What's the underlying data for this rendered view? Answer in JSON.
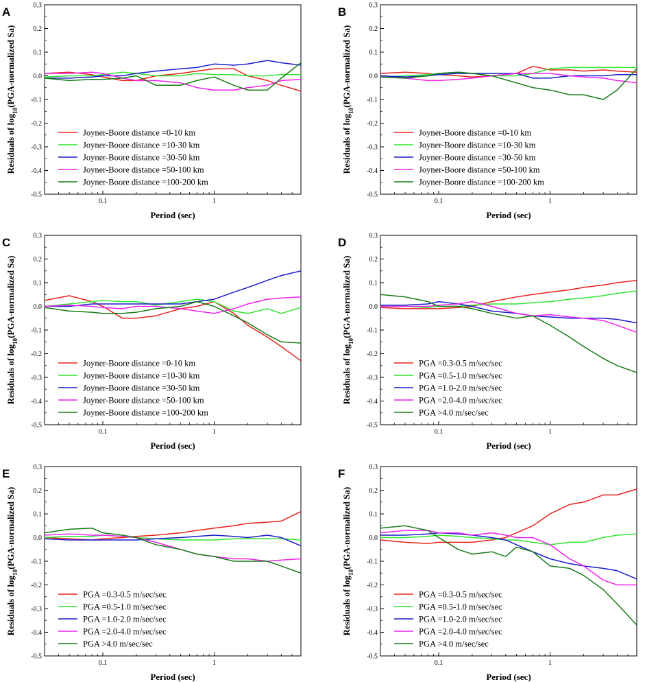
{
  "figure": {
    "shared": {
      "xlabel": "Period (sec)",
      "ylabel_prefix": "Residuals of log",
      "ylabel_sub": "10",
      "ylabel_suffix": "(PGA-normalized Sa)",
      "yticks": [
        "0.3",
        "0.2",
        "0.1",
        "0.0",
        "-0.1",
        "-0.2",
        "-0.3",
        "-0.4",
        "-0.5"
      ],
      "xticks": [
        "0.1",
        "1"
      ]
    }
  },
  "colors": {
    "red": "#e8201a",
    "light_green": "#2ee62e",
    "blue": "#1a1acc",
    "magenta": "#ee22ee",
    "dark_green": "#157a15"
  },
  "chart_data": [
    {
      "panel": "A",
      "type": "line",
      "xscale": "log",
      "xlim": [
        0.03,
        6
      ],
      "ylim": [
        -0.5,
        0.3
      ],
      "xlabel": "Period (sec)",
      "ylabel": "Residuals of log10(PGA-normalized Sa)",
      "legend_position": "bottom-left",
      "x": [
        0.03,
        0.05,
        0.08,
        0.1,
        0.15,
        0.2,
        0.3,
        0.5,
        0.7,
        1,
        1.5,
        2,
        3,
        4,
        6
      ],
      "series": [
        {
          "name": "Joyner-Boore distance =0-10 km",
          "color": "red",
          "values": [
            0.01,
            0.015,
            0.005,
            -0.005,
            -0.02,
            -0.02,
            0.0,
            0.01,
            0.02,
            0.03,
            0.03,
            0.0,
            -0.02,
            -0.04,
            -0.065
          ]
        },
        {
          "name": "Joyner-Boore distance =10-30 km",
          "color": "light_green",
          "values": [
            -0.005,
            0.0,
            0.0,
            0.005,
            0.015,
            0.01,
            0.0,
            0.0,
            0.01,
            0.005,
            0.005,
            0.0,
            0.0,
            0.005,
            0.005
          ]
        },
        {
          "name": "Joyner-Boore distance =30-50 km",
          "color": "blue",
          "values": [
            -0.01,
            -0.01,
            -0.005,
            0.0,
            0.0,
            0.01,
            0.02,
            0.03,
            0.035,
            0.05,
            0.045,
            0.05,
            0.065,
            0.055,
            0.045
          ]
        },
        {
          "name": "Joyner-Boore distance =50-100 km",
          "color": "magenta",
          "values": [
            0.01,
            0.01,
            0.015,
            0.01,
            -0.01,
            -0.02,
            -0.02,
            -0.03,
            -0.05,
            -0.06,
            -0.06,
            -0.05,
            -0.04,
            -0.02,
            -0.015
          ]
        },
        {
          "name": "Joyner-Boore distance =100-200 km",
          "color": "dark_green",
          "values": [
            -0.01,
            -0.02,
            -0.015,
            -0.015,
            -0.01,
            0.0,
            -0.04,
            -0.04,
            -0.02,
            -0.005,
            -0.04,
            -0.06,
            -0.06,
            -0.01,
            0.055
          ]
        }
      ]
    },
    {
      "panel": "B",
      "type": "line",
      "xscale": "log",
      "xlim": [
        0.03,
        6
      ],
      "ylim": [
        -0.5,
        0.3
      ],
      "xlabel": "Period (sec)",
      "ylabel": "Residuals of log10(PGA-normalized Sa)",
      "legend_position": "bottom-left",
      "x": [
        0.03,
        0.05,
        0.08,
        0.1,
        0.15,
        0.2,
        0.3,
        0.5,
        0.7,
        1,
        1.5,
        2,
        3,
        4,
        6
      ],
      "series": [
        {
          "name": "Joyner-Boore distance =0-10 km",
          "color": "red",
          "values": [
            0.01,
            0.015,
            0.01,
            0.005,
            0.0,
            -0.005,
            0.0,
            0.01,
            0.04,
            0.025,
            0.025,
            0.02,
            0.025,
            0.02,
            0.015
          ]
        },
        {
          "name": "Joyner-Boore distance =10-30 km",
          "color": "light_green",
          "values": [
            -0.005,
            0.0,
            0.005,
            0.01,
            0.015,
            0.01,
            0.0,
            0.0,
            0.01,
            0.03,
            0.035,
            0.035,
            0.035,
            0.035,
            0.035
          ]
        },
        {
          "name": "Joyner-Boore distance =30-50 km",
          "color": "blue",
          "values": [
            0.0,
            -0.005,
            0.0,
            0.005,
            0.01,
            0.01,
            0.01,
            0.01,
            -0.01,
            -0.01,
            0.0,
            0.0,
            0.0,
            0.005,
            0.005
          ]
        },
        {
          "name": "Joyner-Boore distance =50-100 km",
          "color": "magenta",
          "values": [
            -0.005,
            -0.01,
            -0.02,
            -0.02,
            -0.015,
            -0.01,
            0.0,
            0.01,
            0.01,
            0.01,
            0.0,
            -0.005,
            -0.01,
            -0.02,
            -0.03
          ]
        },
        {
          "name": "Joyner-Boore distance =100-200 km",
          "color": "dark_green",
          "values": [
            -0.005,
            -0.01,
            0.0,
            0.01,
            0.015,
            0.01,
            0.0,
            -0.03,
            -0.05,
            -0.06,
            -0.08,
            -0.08,
            -0.1,
            -0.06,
            0.03
          ]
        }
      ]
    },
    {
      "panel": "C",
      "type": "line",
      "xscale": "log",
      "xlim": [
        0.03,
        6
      ],
      "ylim": [
        -0.5,
        0.3
      ],
      "xlabel": "Period (sec)",
      "ylabel": "Residuals of log10(PGA-normalized Sa)",
      "legend_position": "bottom-left",
      "x": [
        0.03,
        0.05,
        0.08,
        0.1,
        0.15,
        0.2,
        0.3,
        0.5,
        0.7,
        1,
        1.5,
        2,
        3,
        4,
        6
      ],
      "series": [
        {
          "name": "Joyner-Boore distance =0-10 km",
          "color": "red",
          "values": [
            0.025,
            0.045,
            0.02,
            0.0,
            -0.05,
            -0.05,
            -0.04,
            -0.01,
            0.0,
            0.02,
            -0.03,
            -0.08,
            -0.13,
            -0.17,
            -0.23
          ]
        },
        {
          "name": "Joyner-Boore distance =10-30 km",
          "color": "light_green",
          "values": [
            0.0,
            0.01,
            0.02,
            0.025,
            0.02,
            0.02,
            0.005,
            0.02,
            0.03,
            0.02,
            -0.02,
            -0.03,
            -0.01,
            -0.03,
            -0.005
          ]
        },
        {
          "name": "Joyner-Boore distance =30-50 km",
          "color": "blue",
          "values": [
            0.0,
            0.0,
            0.01,
            0.01,
            0.01,
            0.01,
            0.01,
            0.01,
            0.02,
            0.03,
            0.06,
            0.08,
            0.11,
            0.13,
            0.15
          ]
        },
        {
          "name": "Joyner-Boore distance =50-100 km",
          "color": "magenta",
          "values": [
            0.0,
            0.005,
            0.0,
            -0.005,
            -0.01,
            0.0,
            0.0,
            -0.01,
            -0.02,
            -0.03,
            -0.01,
            0.01,
            0.03,
            0.035,
            0.04
          ]
        },
        {
          "name": "Joyner-Boore distance =100-200 km",
          "color": "dark_green",
          "values": [
            -0.005,
            -0.02,
            -0.025,
            -0.03,
            -0.03,
            -0.025,
            -0.01,
            0.0,
            0.02,
            0.0,
            -0.04,
            -0.07,
            -0.12,
            -0.15,
            -0.155
          ]
        }
      ]
    },
    {
      "panel": "D",
      "type": "line",
      "xscale": "log",
      "xlim": [
        0.03,
        6
      ],
      "ylim": [
        -0.5,
        0.3
      ],
      "xlabel": "Period (sec)",
      "ylabel": "Residuals of log10(PGA-normalized Sa)",
      "legend_position": "bottom-left",
      "x": [
        0.03,
        0.05,
        0.08,
        0.1,
        0.15,
        0.2,
        0.3,
        0.5,
        0.7,
        1,
        1.5,
        2,
        3,
        4,
        6
      ],
      "series": [
        {
          "name": "PGA =0.3-0.5 m/sec/sec",
          "color": "red",
          "values": [
            -0.005,
            -0.01,
            -0.01,
            -0.01,
            -0.005,
            0.0,
            0.02,
            0.04,
            0.05,
            0.06,
            0.07,
            0.08,
            0.09,
            0.1,
            0.11
          ]
        },
        {
          "name": "PGA =0.5-1.0 m/sec/sec",
          "color": "light_green",
          "values": [
            0.0,
            0.0,
            -0.005,
            0.0,
            0.0,
            0.005,
            0.01,
            0.01,
            0.015,
            0.02,
            0.03,
            0.035,
            0.045,
            0.055,
            0.065
          ]
        },
        {
          "name": "PGA =1.0-2.0 m/sec/sec",
          "color": "blue",
          "values": [
            0.005,
            0.005,
            0.01,
            0.02,
            0.01,
            0.0,
            -0.02,
            -0.03,
            -0.04,
            -0.045,
            -0.05,
            -0.05,
            -0.05,
            -0.055,
            -0.07
          ]
        },
        {
          "name": "PGA =2.0-4.0 m/sec/sec",
          "color": "magenta",
          "values": [
            0.0,
            0.0,
            0.0,
            0.005,
            0.01,
            0.02,
            0.0,
            -0.03,
            -0.04,
            -0.035,
            -0.045,
            -0.05,
            -0.06,
            -0.08,
            -0.11
          ]
        },
        {
          "name": "PGA >4.0 m/sec/sec",
          "color": "dark_green",
          "values": [
            0.05,
            0.04,
            0.02,
            0.0,
            0.0,
            -0.01,
            -0.03,
            -0.05,
            -0.04,
            -0.08,
            -0.13,
            -0.17,
            -0.22,
            -0.25,
            -0.28
          ]
        }
      ]
    },
    {
      "panel": "E",
      "type": "line",
      "xscale": "log",
      "xlim": [
        0.03,
        6
      ],
      "ylim": [
        -0.5,
        0.3
      ],
      "xlabel": "Period (sec)",
      "ylabel": "Residuals of log10(PGA-normalized Sa)",
      "legend_position": "bottom-left",
      "x": [
        0.03,
        0.05,
        0.08,
        0.1,
        0.15,
        0.2,
        0.3,
        0.5,
        0.7,
        1,
        1.5,
        2,
        3,
        4,
        6
      ],
      "series": [
        {
          "name": "PGA =0.3-0.5 m/sec/sec",
          "color": "red",
          "values": [
            0.0,
            -0.005,
            -0.01,
            -0.005,
            0.0,
            0.005,
            0.01,
            0.02,
            0.03,
            0.04,
            0.05,
            0.06,
            0.065,
            0.07,
            0.11
          ]
        },
        {
          "name": "PGA =0.5-1.0 m/sec/sec",
          "color": "light_green",
          "values": [
            0.0,
            0.005,
            0.005,
            0.01,
            0.005,
            0.0,
            -0.005,
            -0.01,
            -0.01,
            -0.01,
            -0.005,
            -0.005,
            -0.005,
            -0.005,
            -0.01
          ]
        },
        {
          "name": "PGA =1.0-2.0 m/sec/sec",
          "color": "blue",
          "values": [
            -0.005,
            -0.01,
            -0.01,
            -0.01,
            -0.01,
            -0.01,
            -0.005,
            0.0,
            0.005,
            0.01,
            0.005,
            0.0,
            0.01,
            0.0,
            -0.035
          ]
        },
        {
          "name": "PGA =2.0-4.0 m/sec/sec",
          "color": "magenta",
          "values": [
            0.01,
            0.015,
            0.01,
            0.01,
            0.005,
            0.0,
            -0.02,
            -0.05,
            -0.07,
            -0.08,
            -0.09,
            -0.09,
            -0.1,
            -0.095,
            -0.09
          ]
        },
        {
          "name": "PGA >4.0 m/sec/sec",
          "color": "dark_green",
          "values": [
            0.02,
            0.035,
            0.04,
            0.02,
            0.01,
            0.0,
            -0.03,
            -0.05,
            -0.07,
            -0.08,
            -0.1,
            -0.1,
            -0.1,
            -0.12,
            -0.15
          ]
        }
      ]
    },
    {
      "panel": "F",
      "type": "line",
      "xscale": "log",
      "xlim": [
        0.03,
        6
      ],
      "ylim": [
        -0.5,
        0.3
      ],
      "xlabel": "Period (sec)",
      "ylabel": "Residuals of log10(PGA-normalized Sa)",
      "legend_position": "bottom-left",
      "x": [
        0.03,
        0.05,
        0.08,
        0.1,
        0.15,
        0.2,
        0.3,
        0.4,
        0.5,
        0.7,
        1,
        1.5,
        2,
        3,
        4,
        6
      ],
      "series": [
        {
          "name": "PGA =0.3-0.5 m/sec/sec",
          "color": "red",
          "values": [
            -0.01,
            -0.02,
            -0.025,
            -0.02,
            -0.02,
            -0.02,
            -0.01,
            0.0,
            0.02,
            0.05,
            0.1,
            0.14,
            0.15,
            0.18,
            0.18,
            0.205
          ]
        },
        {
          "name": "PGA =0.5-1.0 m/sec/sec",
          "color": "light_green",
          "values": [
            0.0,
            0.0,
            0.005,
            0.01,
            0.005,
            0.0,
            -0.005,
            -0.01,
            -0.01,
            -0.02,
            -0.03,
            -0.02,
            -0.02,
            0.0,
            0.01,
            0.015
          ]
        },
        {
          "name": "PGA =1.0-2.0 m/sec/sec",
          "color": "blue",
          "values": [
            0.01,
            0.01,
            0.015,
            0.02,
            0.015,
            0.01,
            0.0,
            -0.01,
            -0.03,
            -0.06,
            -0.09,
            -0.11,
            -0.12,
            -0.13,
            -0.14,
            -0.175
          ]
        },
        {
          "name": "PGA =2.0-4.0 m/sec/sec",
          "color": "magenta",
          "values": [
            0.02,
            0.03,
            0.03,
            0.02,
            0.02,
            0.01,
            0.02,
            0.01,
            0.0,
            0.0,
            -0.03,
            -0.09,
            -0.12,
            -0.18,
            -0.2,
            -0.2
          ]
        },
        {
          "name": "PGA >4.0 m/sec/sec",
          "color": "dark_green",
          "values": [
            0.04,
            0.05,
            0.03,
            0.0,
            -0.05,
            -0.07,
            -0.06,
            -0.08,
            -0.04,
            -0.06,
            -0.12,
            -0.13,
            -0.16,
            -0.22,
            -0.28,
            -0.37
          ]
        }
      ]
    }
  ]
}
